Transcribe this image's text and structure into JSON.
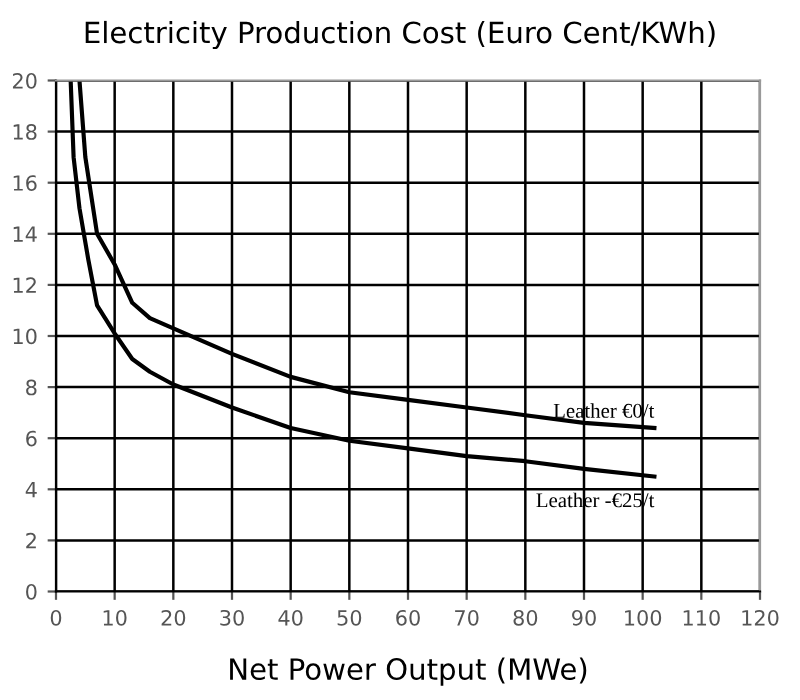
{
  "chart_data": {
    "type": "line",
    "title": "Electricity Production Cost (Euro Cent/KWh)",
    "xlabel": "Net Power Output (MWe)",
    "xlim": [
      0,
      120
    ],
    "xticks": [
      0,
      10,
      20,
      30,
      40,
      50,
      60,
      70,
      80,
      90,
      100,
      110,
      120
    ],
    "ylim": [
      0,
      20
    ],
    "yticks": [
      0,
      2,
      4,
      6,
      8,
      10,
      12,
      14,
      16,
      18,
      20
    ],
    "grid": true,
    "series": [
      {
        "name": "Leather €0/t",
        "color": "#000000",
        "x": [
          4,
          5,
          7,
          10,
          13,
          16,
          20,
          30,
          40,
          50,
          60,
          70,
          80,
          90,
          102
        ],
        "values": [
          20,
          17,
          14,
          12.8,
          11.3,
          10.7,
          10.3,
          9.3,
          8.4,
          7.8,
          7.5,
          7.2,
          6.9,
          6.6,
          6.4
        ]
      },
      {
        "name": "Leather -€25/t",
        "color": "#000000",
        "x": [
          2.5,
          3,
          4,
          5.5,
          7,
          10,
          13,
          16,
          20,
          30,
          40,
          50,
          60,
          70,
          80,
          90,
          102
        ],
        "values": [
          20,
          17,
          15,
          13,
          11.2,
          10.1,
          9.1,
          8.6,
          8.1,
          7.2,
          6.4,
          5.9,
          5.6,
          5.3,
          5.1,
          4.8,
          4.5
        ]
      }
    ]
  }
}
